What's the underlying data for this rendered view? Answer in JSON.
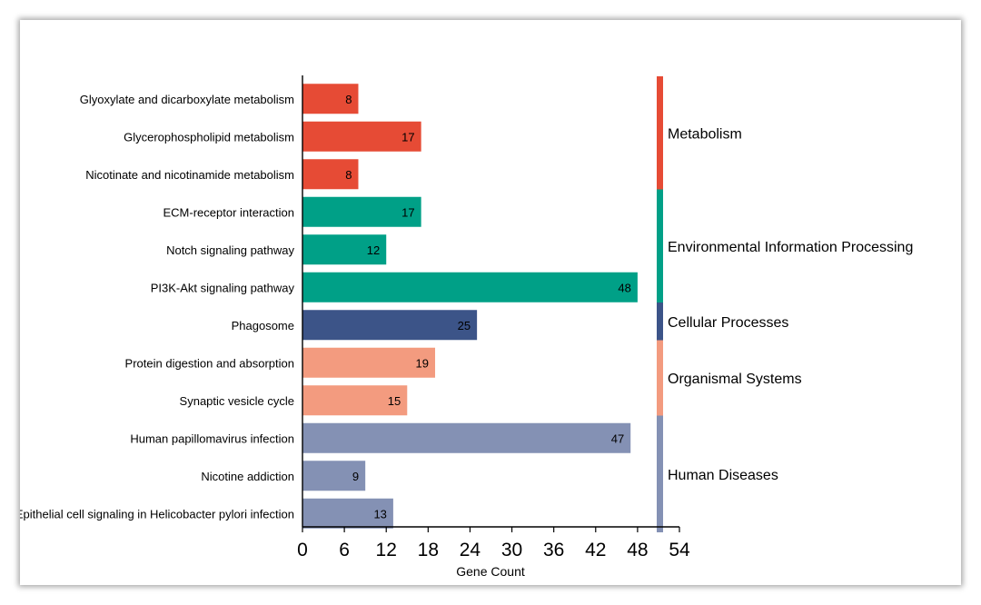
{
  "chart_data": {
    "type": "bar",
    "orientation": "horizontal",
    "xlabel": "Gene Count",
    "ylabel": "",
    "xlim": [
      0,
      54
    ],
    "xticks": [
      0,
      6,
      12,
      18,
      24,
      30,
      36,
      42,
      48,
      54
    ],
    "categories": [
      "Glyoxylate and dicarboxylate metabolism",
      "Glycerophospholipid metabolism",
      "Nicotinate and nicotinamide metabolism",
      "ECM-receptor interaction",
      "Notch signaling pathway",
      "PI3K-Akt signaling pathway",
      "Phagosome",
      "Protein digestion and absorption",
      "Synaptic vesicle cycle",
      "Human papillomavirus infection",
      "Nicotine addiction",
      "Epithelial cell signaling in Helicobacter pylori infection"
    ],
    "values": [
      8,
      17,
      8,
      17,
      12,
      48,
      25,
      19,
      15,
      47,
      9,
      13
    ],
    "groups": [
      {
        "name": "Metabolism",
        "count": 3,
        "color": "#e64b35"
      },
      {
        "name": "Environmental Information Processing",
        "count": 3,
        "color": "#00a087"
      },
      {
        "name": "Cellular Processes",
        "count": 1,
        "color": "#3c5488"
      },
      {
        "name": "Organismal Systems",
        "count": 2,
        "color": "#f39b7f"
      },
      {
        "name": "Human Diseases",
        "count": 3,
        "color": "#8491b4"
      }
    ],
    "grid": false,
    "legend": "right-side group bar"
  }
}
